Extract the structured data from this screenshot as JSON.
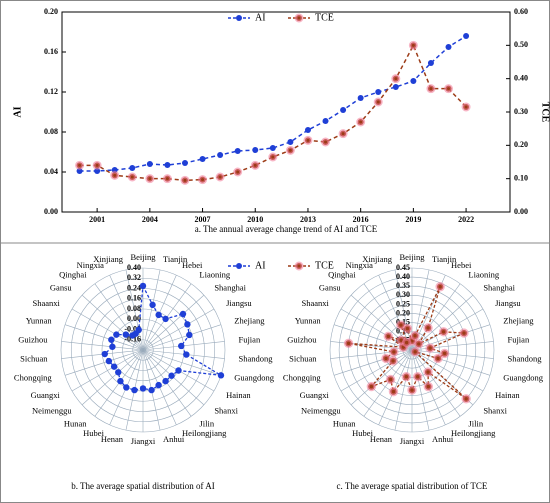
{
  "chart_data": [
    {
      "type": "line",
      "caption": "a. The annual average change trend of AI and TCE",
      "y_label": "AI",
      "y2_label": "TCE",
      "x": [
        2000,
        2001,
        2002,
        2003,
        2004,
        2005,
        2006,
        2007,
        2008,
        2009,
        2010,
        2011,
        2012,
        2013,
        2014,
        2015,
        2016,
        2017,
        2018,
        2019,
        2020,
        2021,
        2022
      ],
      "xlim": [
        1999,
        2024.5
      ],
      "xticks": [
        2001,
        2004,
        2007,
        2010,
        2013,
        2016,
        2019,
        2022
      ],
      "ylim": [
        0,
        0.2
      ],
      "yticks": [
        {
          "value": 0,
          "label": "0.00"
        },
        {
          "value": 0.04,
          "label": "0.04"
        },
        {
          "value": 0.08,
          "label": "0.08"
        },
        {
          "value": 0.12,
          "label": "0.12"
        },
        {
          "value": 0.16,
          "label": "0.16"
        },
        {
          "value": 0.2,
          "label": "0.20"
        }
      ],
      "y2lim": [
        0,
        0.6
      ],
      "y2ticks": [
        {
          "value": 0,
          "label": "0.00"
        },
        {
          "value": 0.1,
          "label": "0.10"
        },
        {
          "value": 0.2,
          "label": "0.20"
        },
        {
          "value": 0.3,
          "label": "0.30"
        },
        {
          "value": 0.4,
          "label": "0.40"
        },
        {
          "value": 0.5,
          "label": "0.50"
        },
        {
          "value": 0.6,
          "label": "0.60"
        }
      ],
      "series": [
        {
          "name": "AI",
          "color": "#1f3fd6",
          "values": [
            0.041,
            0.041,
            0.042,
            0.044,
            0.048,
            0.047,
            0.049,
            0.053,
            0.057,
            0.061,
            0.062,
            0.064,
            0.07,
            0.082,
            0.091,
            0.102,
            0.114,
            0.12,
            0.125,
            0.131,
            0.149,
            0.165,
            0.176
          ]
        },
        {
          "name": "TCE",
          "color": "#9c3b16",
          "axis": "y2",
          "values": [
            0.14,
            0.14,
            0.11,
            0.105,
            0.1,
            0.1,
            0.095,
            0.097,
            0.105,
            0.12,
            0.14,
            0.165,
            0.185,
            0.215,
            0.21,
            0.235,
            0.27,
            0.33,
            0.4,
            0.5,
            0.37,
            0.37,
            0.315
          ]
        }
      ]
    },
    {
      "type": "radar",
      "caption": "b. The average spatial distribution of AI",
      "categories": [
        "Beijing",
        "Tianjin",
        "Hebei",
        "Liaoning",
        "Shanghai",
        "Jiangsu",
        "Zhejiang",
        "Fujian",
        "Shandong",
        "Guangdong",
        "Hainan",
        "Shanxi",
        "Jilin",
        "Heilongjiang",
        "Anhui",
        "Jiangxi",
        "Henan",
        "Hubei",
        "Hunan",
        "Neimenggu",
        "Guangxi",
        "Chongqing",
        "Sichuan",
        "Guizhou",
        "Yunnan",
        "Shaanxi",
        "Gansu",
        "Qinghai",
        "Ningxia",
        "Xinjiang"
      ],
      "rlim": [
        -0.24,
        0.4
      ],
      "rticks": [
        {
          "value": 0.4,
          "label": "0.40"
        },
        {
          "value": 0.32,
          "label": "0.32"
        },
        {
          "value": 0.24,
          "label": "0.24"
        },
        {
          "value": 0.16,
          "label": "0.16"
        },
        {
          "value": 0.08,
          "label": "0.08"
        },
        {
          "value": 0,
          "label": "0.00"
        },
        {
          "value": -0.08,
          "label": "-0.08"
        },
        {
          "value": -0.16,
          "label": "-0.16"
        }
      ],
      "series": [
        {
          "name": "AI",
          "color": "#1f3fd6",
          "values": [
            0.26,
            0.12,
            0.06,
            0.06,
            0.18,
            0.16,
            0.14,
            0.06,
            0.1,
            0.4,
            0.08,
            0.06,
            0.06,
            0.06,
            0.08,
            0.06,
            0.08,
            0.08,
            0.06,
            0.02,
            0.02,
            0.04,
            0.06,
            0.0,
            0.02,
            0.0,
            -0.06,
            -0.1,
            -0.1,
            -0.08
          ]
        }
      ]
    },
    {
      "type": "radar",
      "caption": "c. The average spatial distribution of  TCE",
      "categories": [
        "Beijing",
        "Tianjin",
        "Hebei",
        "Liaoning",
        "Shanghai",
        "Jiangsu",
        "Zhejiang",
        "Fujian",
        "Shandong",
        "Guangdong",
        "Hainan",
        "Shanxi",
        "Jilin",
        "Heilongjiang",
        "Anhui",
        "Jiangxi",
        "Henan",
        "Hubei",
        "Hunan",
        "Neimenggu",
        "Guangxi",
        "Chongqing",
        "Sichuan",
        "Guizhou",
        "Yunnan",
        "Shaanxi",
        "Gansu",
        "Qinghai",
        "Ningxia",
        "Xinjiang"
      ],
      "rlim": [
        0,
        0.45
      ],
      "rticks": [
        {
          "value": 0.45,
          "label": "0.45"
        },
        {
          "value": 0.4,
          "label": "0.40"
        },
        {
          "value": 0.35,
          "label": "0.35"
        },
        {
          "value": 0.3,
          "label": "0.30"
        },
        {
          "value": 0.25,
          "label": "0.25"
        },
        {
          "value": 0.2,
          "label": "0.20"
        },
        {
          "value": 0.15,
          "label": "0.15"
        },
        {
          "value": 0.1,
          "label": "0.10"
        },
        {
          "value": 0.05,
          "label": "0.05"
        }
      ],
      "series": [
        {
          "name": "TCE",
          "color": "#9c3b16",
          "values": [
            0.05,
            0.08,
            0.38,
            0.15,
            0.05,
            0.2,
            0.3,
            0.1,
            0.18,
            0.15,
            0.02,
            0.4,
            0.15,
            0.22,
            0.15,
            0.22,
            0.15,
            0.25,
            0.2,
            0.3,
            0.12,
            0.15,
            0.1,
            0.35,
            0.05,
            0.15,
            0.08,
            0.05,
            0.15,
            0.12
          ]
        }
      ]
    }
  ]
}
